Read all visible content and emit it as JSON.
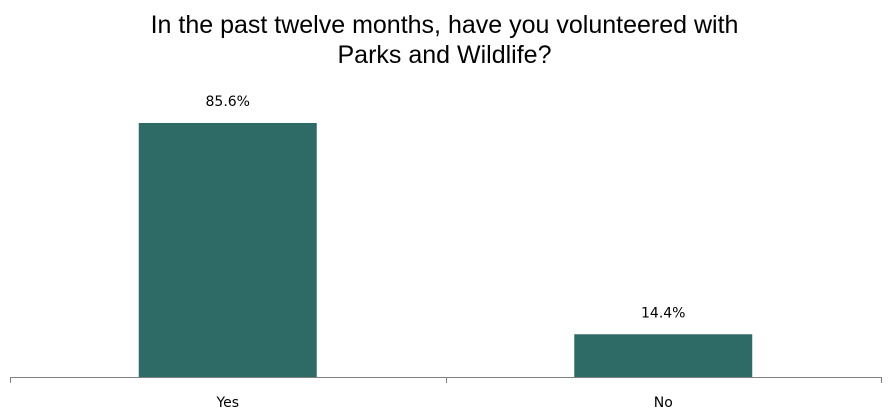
{
  "title_lines": [
    "In the past twelve months, have you volunteered with",
    "Parks and Wildlife?"
  ],
  "colors": {
    "bar": "#2e6a66",
    "axis": "#808080"
  },
  "chart_data": {
    "type": "bar",
    "title": "In the past twelve months, have you volunteered with Parks and Wildlife?",
    "categories": [
      "Yes",
      "No"
    ],
    "values": [
      85.6,
      14.4
    ],
    "value_labels": [
      "85.6%",
      "14.4%"
    ],
    "ylim": [
      0,
      100
    ],
    "grid": false,
    "legend": "none"
  }
}
